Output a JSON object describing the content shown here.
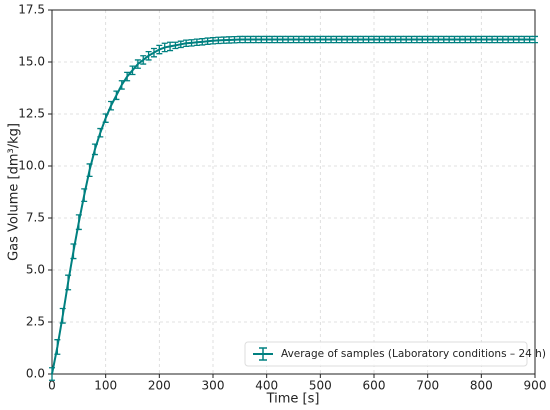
{
  "chart_data": {
    "type": "errorbar-line",
    "xlabel": "Time [s]",
    "ylabel": "Gas Volume [dm³/kg]",
    "xlim": [
      0,
      900
    ],
    "xticks": [
      0,
      100,
      200,
      300,
      400,
      500,
      600,
      700,
      800,
      900
    ],
    "ylim": [
      0,
      17.5
    ],
    "yticks": [
      {
        "value": 0,
        "label": "0.0"
      },
      2.5,
      {
        "value": 5,
        "label": "5.0"
      },
      7.5,
      {
        "value": 10,
        "label": "10.0"
      },
      12.5,
      {
        "value": 15,
        "label": "15.0"
      },
      17.5
    ],
    "grid": true,
    "legend": "lower right",
    "series": [
      {
        "name": "Average of samples (Laboratory conditions – 24 h)",
        "color": "#008080",
        "x": [
          0,
          10,
          20,
          30,
          40,
          50,
          60,
          70,
          80,
          90,
          100,
          110,
          120,
          130,
          140,
          150,
          160,
          170,
          180,
          190,
          200,
          210,
          220,
          230,
          240,
          250,
          260,
          270,
          280,
          290,
          300,
          310,
          320,
          330,
          340,
          350,
          360,
          370,
          380,
          390,
          400,
          410,
          420,
          430,
          440,
          450,
          460,
          470,
          480,
          490,
          500,
          510,
          520,
          530,
          540,
          550,
          560,
          570,
          580,
          590,
          600,
          610,
          620,
          630,
          640,
          650,
          660,
          670,
          680,
          690,
          700,
          710,
          720,
          730,
          740,
          750,
          760,
          770,
          780,
          790,
          800,
          810,
          820,
          830,
          840,
          850,
          860,
          870,
          880,
          890,
          900
        ],
        "values": [
          0,
          1.3,
          2.8,
          4.4,
          5.9,
          7.3,
          8.6,
          9.8,
          10.8,
          11.6,
          12.3,
          12.9,
          13.4,
          13.9,
          14.3,
          14.6,
          14.9,
          15.1,
          15.3,
          15.45,
          15.6,
          15.7,
          15.75,
          15.8,
          15.85,
          15.9,
          15.92,
          15.95,
          15.97,
          16.0,
          16.02,
          16.04,
          16.05,
          16.06,
          16.07,
          16.08,
          16.08,
          16.08,
          16.08,
          16.08,
          16.08,
          16.08,
          16.08,
          16.08,
          16.08,
          16.08,
          16.08,
          16.08,
          16.08,
          16.08,
          16.08,
          16.08,
          16.08,
          16.08,
          16.08,
          16.08,
          16.08,
          16.08,
          16.08,
          16.08,
          16.08,
          16.08,
          16.08,
          16.08,
          16.08,
          16.08,
          16.08,
          16.08,
          16.08,
          16.08,
          16.08,
          16.08,
          16.08,
          16.08,
          16.08,
          16.08,
          16.08,
          16.08,
          16.08,
          16.08,
          16.08,
          16.08,
          16.08,
          16.08,
          16.08,
          16.08,
          16.08,
          16.08,
          16.08,
          16.08,
          16.08
        ],
        "errors": [
          0.3,
          0.35,
          0.35,
          0.35,
          0.35,
          0.35,
          0.3,
          0.3,
          0.25,
          0.2,
          0.2,
          0.2,
          0.2,
          0.2,
          0.2,
          0.2,
          0.2,
          0.2,
          0.2,
          0.2,
          0.2,
          0.2,
          0.2,
          0.15,
          0.15,
          0.15,
          0.15,
          0.15,
          0.15,
          0.15,
          0.15,
          0.15,
          0.15,
          0.15,
          0.15,
          0.15,
          0.15,
          0.15,
          0.15,
          0.15,
          0.15,
          0.15,
          0.15,
          0.15,
          0.15,
          0.15,
          0.15,
          0.15,
          0.15,
          0.15,
          0.15,
          0.15,
          0.15,
          0.15,
          0.15,
          0.15,
          0.15,
          0.15,
          0.15,
          0.15,
          0.15,
          0.15,
          0.15,
          0.15,
          0.15,
          0.15,
          0.15,
          0.15,
          0.15,
          0.15,
          0.15,
          0.15,
          0.15,
          0.15,
          0.15,
          0.15,
          0.15,
          0.15,
          0.15,
          0.15,
          0.15,
          0.15,
          0.15,
          0.15,
          0.15,
          0.15,
          0.15,
          0.15,
          0.15,
          0.15,
          0.15
        ]
      }
    ]
  }
}
